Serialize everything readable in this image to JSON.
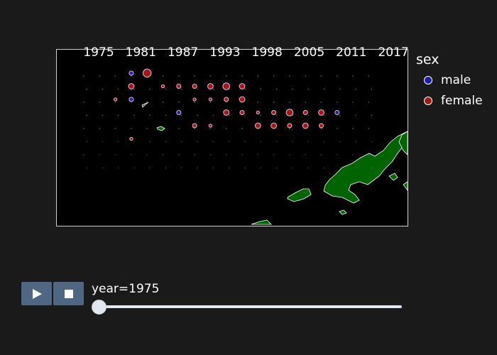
{
  "colors": {
    "male": "#1f1faa",
    "female": "#a01818",
    "land": "#006400",
    "ocean": "#000000",
    "outline": "#ffffff"
  },
  "legend": {
    "title": "sex",
    "items": [
      {
        "label": "male",
        "color": "#1f1faa"
      },
      {
        "label": "female",
        "color": "#a01818"
      }
    ]
  },
  "slider": {
    "prefix": "year=",
    "current": "1975",
    "label": "year=1975",
    "ticks": [
      "1975",
      "1981",
      "1987",
      "1993",
      "1998",
      "2005",
      "2011",
      "2017"
    ]
  },
  "controls": {
    "play_icon": "play-icon",
    "stop_icon": "stop-icon"
  },
  "chart_data": {
    "type": "scatter",
    "chart_kind": "animated scatter map (geographic bubbles by sex)",
    "animation_frame": "year",
    "frame_values": [
      "1975",
      "1981",
      "1987",
      "1993",
      "1998",
      "2005",
      "2011",
      "2017"
    ],
    "current_frame": "1975",
    "legend_title": "sex",
    "series": [
      {
        "name": "male",
        "color": "#1f1faa",
        "points": [
          {
            "col": 3,
            "row": 0,
            "size": 2
          },
          {
            "col": 3,
            "row": 2,
            "size": 2
          },
          {
            "col": 6,
            "row": 3,
            "size": 2
          },
          {
            "col": 16,
            "row": 3,
            "size": 2
          }
        ]
      },
      {
        "name": "female",
        "color": "#a01818",
        "points": [
          {
            "col": 4,
            "row": 0,
            "size": 5
          },
          {
            "col": 3,
            "row": 1,
            "size": 3
          },
          {
            "col": 5,
            "row": 1,
            "size": 1
          },
          {
            "col": 6,
            "row": 1,
            "size": 2
          },
          {
            "col": 7,
            "row": 1,
            "size": 2
          },
          {
            "col": 8,
            "row": 1,
            "size": 3
          },
          {
            "col": 9,
            "row": 1,
            "size": 4
          },
          {
            "col": 10,
            "row": 1,
            "size": 3
          },
          {
            "col": 2,
            "row": 2,
            "size": 1
          },
          {
            "col": 7,
            "row": 2,
            "size": 1
          },
          {
            "col": 8,
            "row": 2,
            "size": 1
          },
          {
            "col": 9,
            "row": 2,
            "size": 2
          },
          {
            "col": 10,
            "row": 2,
            "size": 3
          },
          {
            "col": 9,
            "row": 3,
            "size": 3
          },
          {
            "col": 10,
            "row": 3,
            "size": 2
          },
          {
            "col": 11,
            "row": 3,
            "size": 1
          },
          {
            "col": 12,
            "row": 3,
            "size": 2
          },
          {
            "col": 13,
            "row": 3,
            "size": 4
          },
          {
            "col": 14,
            "row": 3,
            "size": 2
          },
          {
            "col": 15,
            "row": 3,
            "size": 3
          },
          {
            "col": 7,
            "row": 4,
            "size": 2
          },
          {
            "col": 8,
            "row": 4,
            "size": 1
          },
          {
            "col": 11,
            "row": 4,
            "size": 3
          },
          {
            "col": 12,
            "row": 4,
            "size": 3
          },
          {
            "col": 13,
            "row": 4,
            "size": 2
          },
          {
            "col": 14,
            "row": 4,
            "size": 3
          },
          {
            "col": 15,
            "row": 4,
            "size": 2
          },
          {
            "col": 3,
            "row": 5,
            "size": 1
          }
        ]
      }
    ],
    "background_grid": {
      "rows": 8,
      "cols": 19,
      "marker": "faint"
    }
  }
}
